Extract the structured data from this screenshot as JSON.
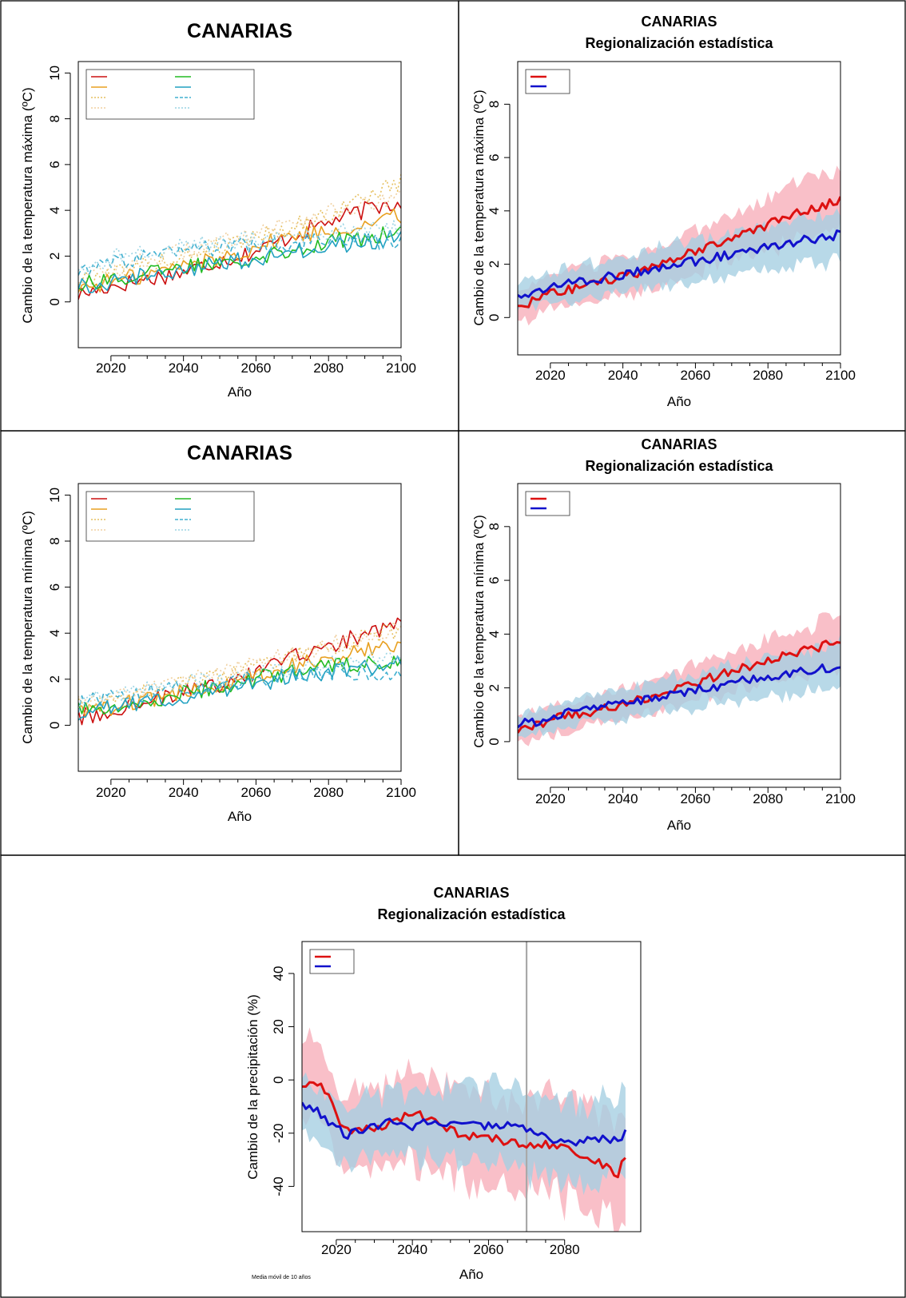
{
  "colors": {
    "sres_a2": "#dd1111",
    "sres_b2": "#1111cc",
    "band_a2": "#f8b4be",
    "band_b2": "#a6cfe2"
  },
  "chart_data": [
    {
      "type": "line",
      "title": "CANARIAS",
      "subtitle": "",
      "xlabel": "Año",
      "ylabel": "Cambio de la temperatura máxima (ºC)",
      "xlim": [
        2011,
        2100
      ],
      "ylim": [
        -2,
        10.5
      ],
      "xticks": [
        2020,
        2040,
        2060,
        2080,
        2100
      ],
      "yticks": [
        0,
        2,
        4,
        6,
        8,
        10
      ],
      "grid": false,
      "legend_position": "top-left",
      "series": [
        {
          "name": "",
          "color": "#cc1111",
          "style": "solid",
          "key": [
            2011,
            0.3,
            2020,
            0.7,
            2030,
            1.0,
            2040,
            1.3,
            2050,
            1.8,
            2060,
            2.2,
            2070,
            2.9,
            2080,
            3.5,
            2090,
            4.0,
            2100,
            4.4
          ]
        },
        {
          "name": "",
          "color": "#e8a020",
          "style": "solid",
          "key": [
            2011,
            0.6,
            2020,
            0.9,
            2030,
            1.2,
            2040,
            1.6,
            2050,
            1.9,
            2060,
            2.4,
            2070,
            2.9,
            2080,
            3.1,
            2090,
            3.4,
            2100,
            3.8
          ]
        },
        {
          "name": "",
          "color": "#e6c060",
          "style": "dotted",
          "key": [
            2011,
            0.9,
            2020,
            1.3,
            2030,
            1.6,
            2040,
            2.0,
            2050,
            2.4,
            2060,
            2.9,
            2070,
            3.3,
            2080,
            3.8,
            2090,
            4.6,
            2100,
            5.2
          ]
        },
        {
          "name": "",
          "color": "#f0d0a0",
          "style": "dotted",
          "key": [
            2011,
            1.0,
            2020,
            1.4,
            2030,
            1.8,
            2040,
            2.2,
            2050,
            2.6,
            2060,
            3.1,
            2070,
            3.5,
            2080,
            3.9,
            2090,
            4.2,
            2100,
            4.5
          ]
        },
        {
          "name": "",
          "color": "#22bb22",
          "style": "solid",
          "key": [
            2011,
            0.8,
            2020,
            1.0,
            2030,
            1.2,
            2040,
            1.5,
            2050,
            1.8,
            2060,
            2.0,
            2070,
            2.3,
            2080,
            2.6,
            2090,
            2.8,
            2100,
            3.0
          ]
        },
        {
          "name": "",
          "color": "#20a0c0",
          "style": "solid",
          "key": [
            2011,
            0.7,
            2020,
            0.9,
            2030,
            1.2,
            2040,
            1.4,
            2050,
            1.7,
            2060,
            1.9,
            2070,
            2.2,
            2080,
            2.4,
            2090,
            2.6,
            2100,
            2.8
          ]
        },
        {
          "name": "",
          "color": "#40b0d0",
          "style": "dashed",
          "key": [
            2011,
            1.3,
            2020,
            1.7,
            2030,
            1.9,
            2040,
            2.2,
            2050,
            2.4,
            2060,
            2.5,
            2070,
            2.6,
            2080,
            2.7,
            2090,
            2.6,
            2100,
            2.6
          ]
        },
        {
          "name": "",
          "color": "#9ad4e4",
          "style": "dotted",
          "key": [
            2011,
            1.5,
            2020,
            1.9,
            2030,
            2.2,
            2040,
            2.4,
            2050,
            2.6,
            2060,
            2.7,
            2070,
            2.9,
            2080,
            3.0,
            2090,
            3.1,
            2100,
            3.2
          ]
        }
      ]
    },
    {
      "type": "area",
      "title": "CANARIAS",
      "subtitle": "Regionalización estadística",
      "xlabel": "Año",
      "ylabel": "Cambio de la temperatura máxima (ºC)",
      "xlim": [
        2011,
        2100
      ],
      "ylim": [
        -1.4,
        9.6
      ],
      "xticks": [
        2020,
        2040,
        2060,
        2080,
        2100
      ],
      "yticks": [
        0,
        2,
        4,
        6,
        8
      ],
      "grid": false,
      "legend_position": "top-left",
      "series": [
        {
          "name": "",
          "color": "#dd1111",
          "band": "#f8b4be",
          "key": [
            2011,
            0.4,
            2020,
            0.9,
            2030,
            1.2,
            2040,
            1.5,
            2050,
            1.9,
            2060,
            2.5,
            2070,
            3.0,
            2080,
            3.5,
            2090,
            4.0,
            2100,
            4.4
          ],
          "spread": [
            2011,
            0.6,
            2050,
            0.7,
            2100,
            1.1
          ]
        },
        {
          "name": "",
          "color": "#1111cc",
          "band": "#a6cfe2",
          "key": [
            2011,
            0.8,
            2020,
            1.1,
            2030,
            1.4,
            2040,
            1.6,
            2050,
            1.9,
            2060,
            2.1,
            2070,
            2.4,
            2080,
            2.6,
            2090,
            2.9,
            2100,
            3.1
          ],
          "spread": [
            2011,
            0.5,
            2050,
            0.7,
            2100,
            0.9
          ]
        }
      ]
    },
    {
      "type": "line",
      "title": "CANARIAS",
      "subtitle": "",
      "xlabel": "Año",
      "ylabel": "Cambio de la temperatura mínima (ºC)",
      "xlim": [
        2011,
        2100
      ],
      "ylim": [
        -2,
        10.5
      ],
      "xticks": [
        2020,
        2040,
        2060,
        2080,
        2100
      ],
      "yticks": [
        0,
        2,
        4,
        6,
        8,
        10
      ],
      "grid": false,
      "legend_position": "top-left",
      "series": [
        {
          "name": "",
          "color": "#cc1111",
          "style": "solid",
          "key": [
            2011,
            0.3,
            2020,
            0.7,
            2030,
            1.0,
            2040,
            1.4,
            2050,
            1.8,
            2060,
            2.3,
            2070,
            2.9,
            2080,
            3.4,
            2090,
            4.0,
            2100,
            4.4
          ]
        },
        {
          "name": "",
          "color": "#e8a020",
          "style": "solid",
          "key": [
            2011,
            0.5,
            2020,
            0.8,
            2030,
            1.1,
            2040,
            1.5,
            2050,
            1.8,
            2060,
            2.2,
            2070,
            2.6,
            2080,
            2.9,
            2090,
            3.2,
            2100,
            3.5
          ]
        },
        {
          "name": "",
          "color": "#e6c060",
          "style": "dotted",
          "key": [
            2011,
            0.8,
            2020,
            1.1,
            2030,
            1.4,
            2040,
            1.8,
            2050,
            2.1,
            2060,
            2.6,
            2070,
            3.0,
            2080,
            3.4,
            2090,
            3.8,
            2100,
            4.2
          ]
        },
        {
          "name": "",
          "color": "#f0d0a0",
          "style": "dotted",
          "key": [
            2011,
            0.9,
            2020,
            1.2,
            2030,
            1.5,
            2040,
            1.9,
            2050,
            2.3,
            2060,
            2.7,
            2070,
            3.1,
            2080,
            3.5,
            2090,
            3.9,
            2100,
            4.3
          ]
        },
        {
          "name": "",
          "color": "#22bb22",
          "style": "solid",
          "key": [
            2011,
            0.6,
            2020,
            0.9,
            2030,
            1.1,
            2040,
            1.4,
            2050,
            1.7,
            2060,
            2.0,
            2070,
            2.3,
            2080,
            2.5,
            2090,
            2.7,
            2100,
            2.9
          ]
        },
        {
          "name": "",
          "color": "#20a0c0",
          "style": "solid",
          "key": [
            2011,
            0.6,
            2020,
            0.8,
            2030,
            1.0,
            2040,
            1.3,
            2050,
            1.6,
            2060,
            1.8,
            2070,
            2.1,
            2080,
            2.3,
            2090,
            2.5,
            2100,
            2.7
          ]
        },
        {
          "name": "",
          "color": "#40b0d0",
          "style": "dashed",
          "key": [
            2011,
            0.9,
            2020,
            1.2,
            2030,
            1.4,
            2040,
            1.6,
            2050,
            1.8,
            2060,
            2.0,
            2070,
            2.2,
            2080,
            2.3,
            2090,
            2.3,
            2100,
            2.2
          ]
        },
        {
          "name": "",
          "color": "#9ad4e4",
          "style": "dotted",
          "key": [
            2011,
            1.0,
            2020,
            1.3,
            2030,
            1.6,
            2040,
            1.8,
            2050,
            2.0,
            2060,
            2.2,
            2070,
            2.4,
            2080,
            2.6,
            2090,
            2.8,
            2100,
            3.0
          ]
        }
      ]
    },
    {
      "type": "area",
      "title": "CANARIAS",
      "subtitle": "Regionalización estadística",
      "xlabel": "Año",
      "ylabel": "Cambio de la temperatura mínima (ºC)",
      "xlim": [
        2011,
        2100
      ],
      "ylim": [
        -1.4,
        9.6
      ],
      "xticks": [
        2020,
        2040,
        2060,
        2080,
        2100
      ],
      "yticks": [
        0,
        2,
        4,
        6,
        8
      ],
      "grid": false,
      "legend_position": "top-left",
      "series": [
        {
          "name": "",
          "color": "#dd1111",
          "band": "#f8b4be",
          "key": [
            2011,
            0.4,
            2020,
            0.8,
            2030,
            1.1,
            2040,
            1.4,
            2050,
            1.7,
            2060,
            2.2,
            2070,
            2.6,
            2080,
            3.0,
            2090,
            3.4,
            2100,
            3.7
          ],
          "spread": [
            2011,
            0.5,
            2050,
            0.6,
            2100,
            0.9
          ]
        },
        {
          "name": "",
          "color": "#1111cc",
          "band": "#a6cfe2",
          "key": [
            2011,
            0.6,
            2020,
            0.9,
            2030,
            1.2,
            2040,
            1.4,
            2050,
            1.7,
            2060,
            1.9,
            2070,
            2.2,
            2080,
            2.4,
            2090,
            2.6,
            2100,
            2.8
          ],
          "spread": [
            2011,
            0.4,
            2050,
            0.6,
            2100,
            0.8
          ]
        }
      ]
    },
    {
      "type": "area",
      "title": "CANARIAS",
      "subtitle": "Regionalización estadística",
      "xlabel": "Año",
      "ylabel": "Cambio de la precipitación (%)",
      "xlim": [
        2011,
        2100
      ],
      "ylim": [
        -57,
        52
      ],
      "xticks": [
        2020,
        2040,
        2060,
        2080
      ],
      "yticks": [
        -40,
        -20,
        0,
        20,
        40
      ],
      "ytick_labels": [
        "-40",
        "-20",
        "0",
        "20",
        "40"
      ],
      "vline_x": 2070,
      "note": "Media móvil de 10 años",
      "grid": false,
      "legend_position": "top-left",
      "series": [
        {
          "name": "",
          "color": "#dd1111",
          "band": "#f8b4be",
          "key": [
            2011,
            -3,
            2014,
            0,
            2018,
            -6,
            2021,
            -18,
            2024,
            -20,
            2030,
            -18,
            2035,
            -16,
            2040,
            -12,
            2045,
            -15,
            2050,
            -19,
            2055,
            -21,
            2060,
            -22,
            2065,
            -23,
            2070,
            -25,
            2075,
            -24,
            2080,
            -26,
            2085,
            -28,
            2090,
            -32,
            2094,
            -35,
            2096,
            -29
          ],
          "spread": [
            2011,
            14,
            2020,
            13,
            2030,
            16,
            2050,
            17,
            2070,
            18,
            2096,
            20
          ]
        },
        {
          "name": "",
          "color": "#1111cc",
          "band": "#a6cfe2",
          "key": [
            2011,
            -9,
            2015,
            -12,
            2020,
            -18,
            2023,
            -21,
            2030,
            -17,
            2035,
            -16,
            2040,
            -18,
            2045,
            -15,
            2050,
            -16,
            2055,
            -17,
            2060,
            -17,
            2065,
            -17,
            2070,
            -19,
            2075,
            -22,
            2080,
            -24,
            2085,
            -23,
            2090,
            -22,
            2094,
            -23,
            2096,
            -19
          ],
          "spread": [
            2011,
            10,
            2030,
            11,
            2050,
            13,
            2070,
            15,
            2096,
            14
          ]
        }
      ]
    }
  ]
}
